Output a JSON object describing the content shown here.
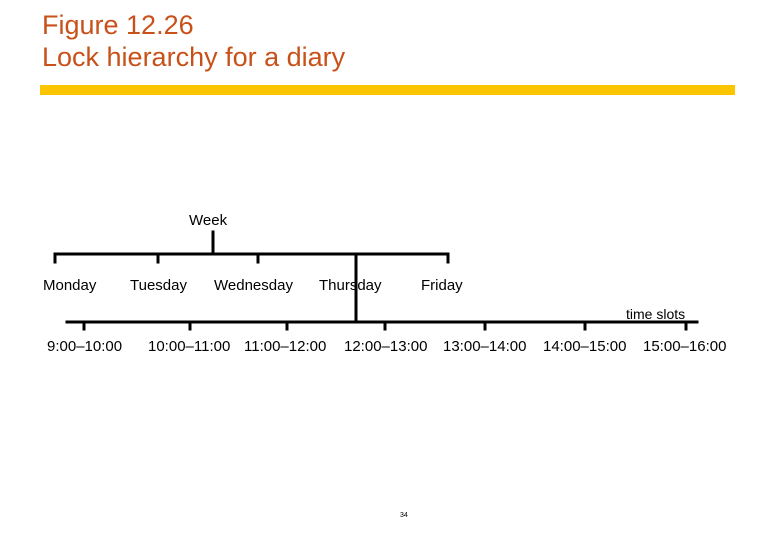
{
  "header": {
    "line1": "Figure 12.26",
    "line2": "Lock hierarchy for a diary"
  },
  "colors": {
    "title": "#c8511a",
    "rule": "#fcc500",
    "lines": "#000000"
  },
  "hierarchy": {
    "root": "Week",
    "days": [
      "Monday",
      "Tuesday",
      "Wednesday",
      "Thursday",
      "Friday"
    ],
    "slots_label": "time slots",
    "slots": [
      "9:00–10:00",
      "10:00–11:00",
      "11:00–12:00",
      "12:00–13:00",
      "13:00–14:00",
      "14:00–15:00",
      "15:00–16:00"
    ]
  },
  "footer": {
    "page_number": "34"
  }
}
